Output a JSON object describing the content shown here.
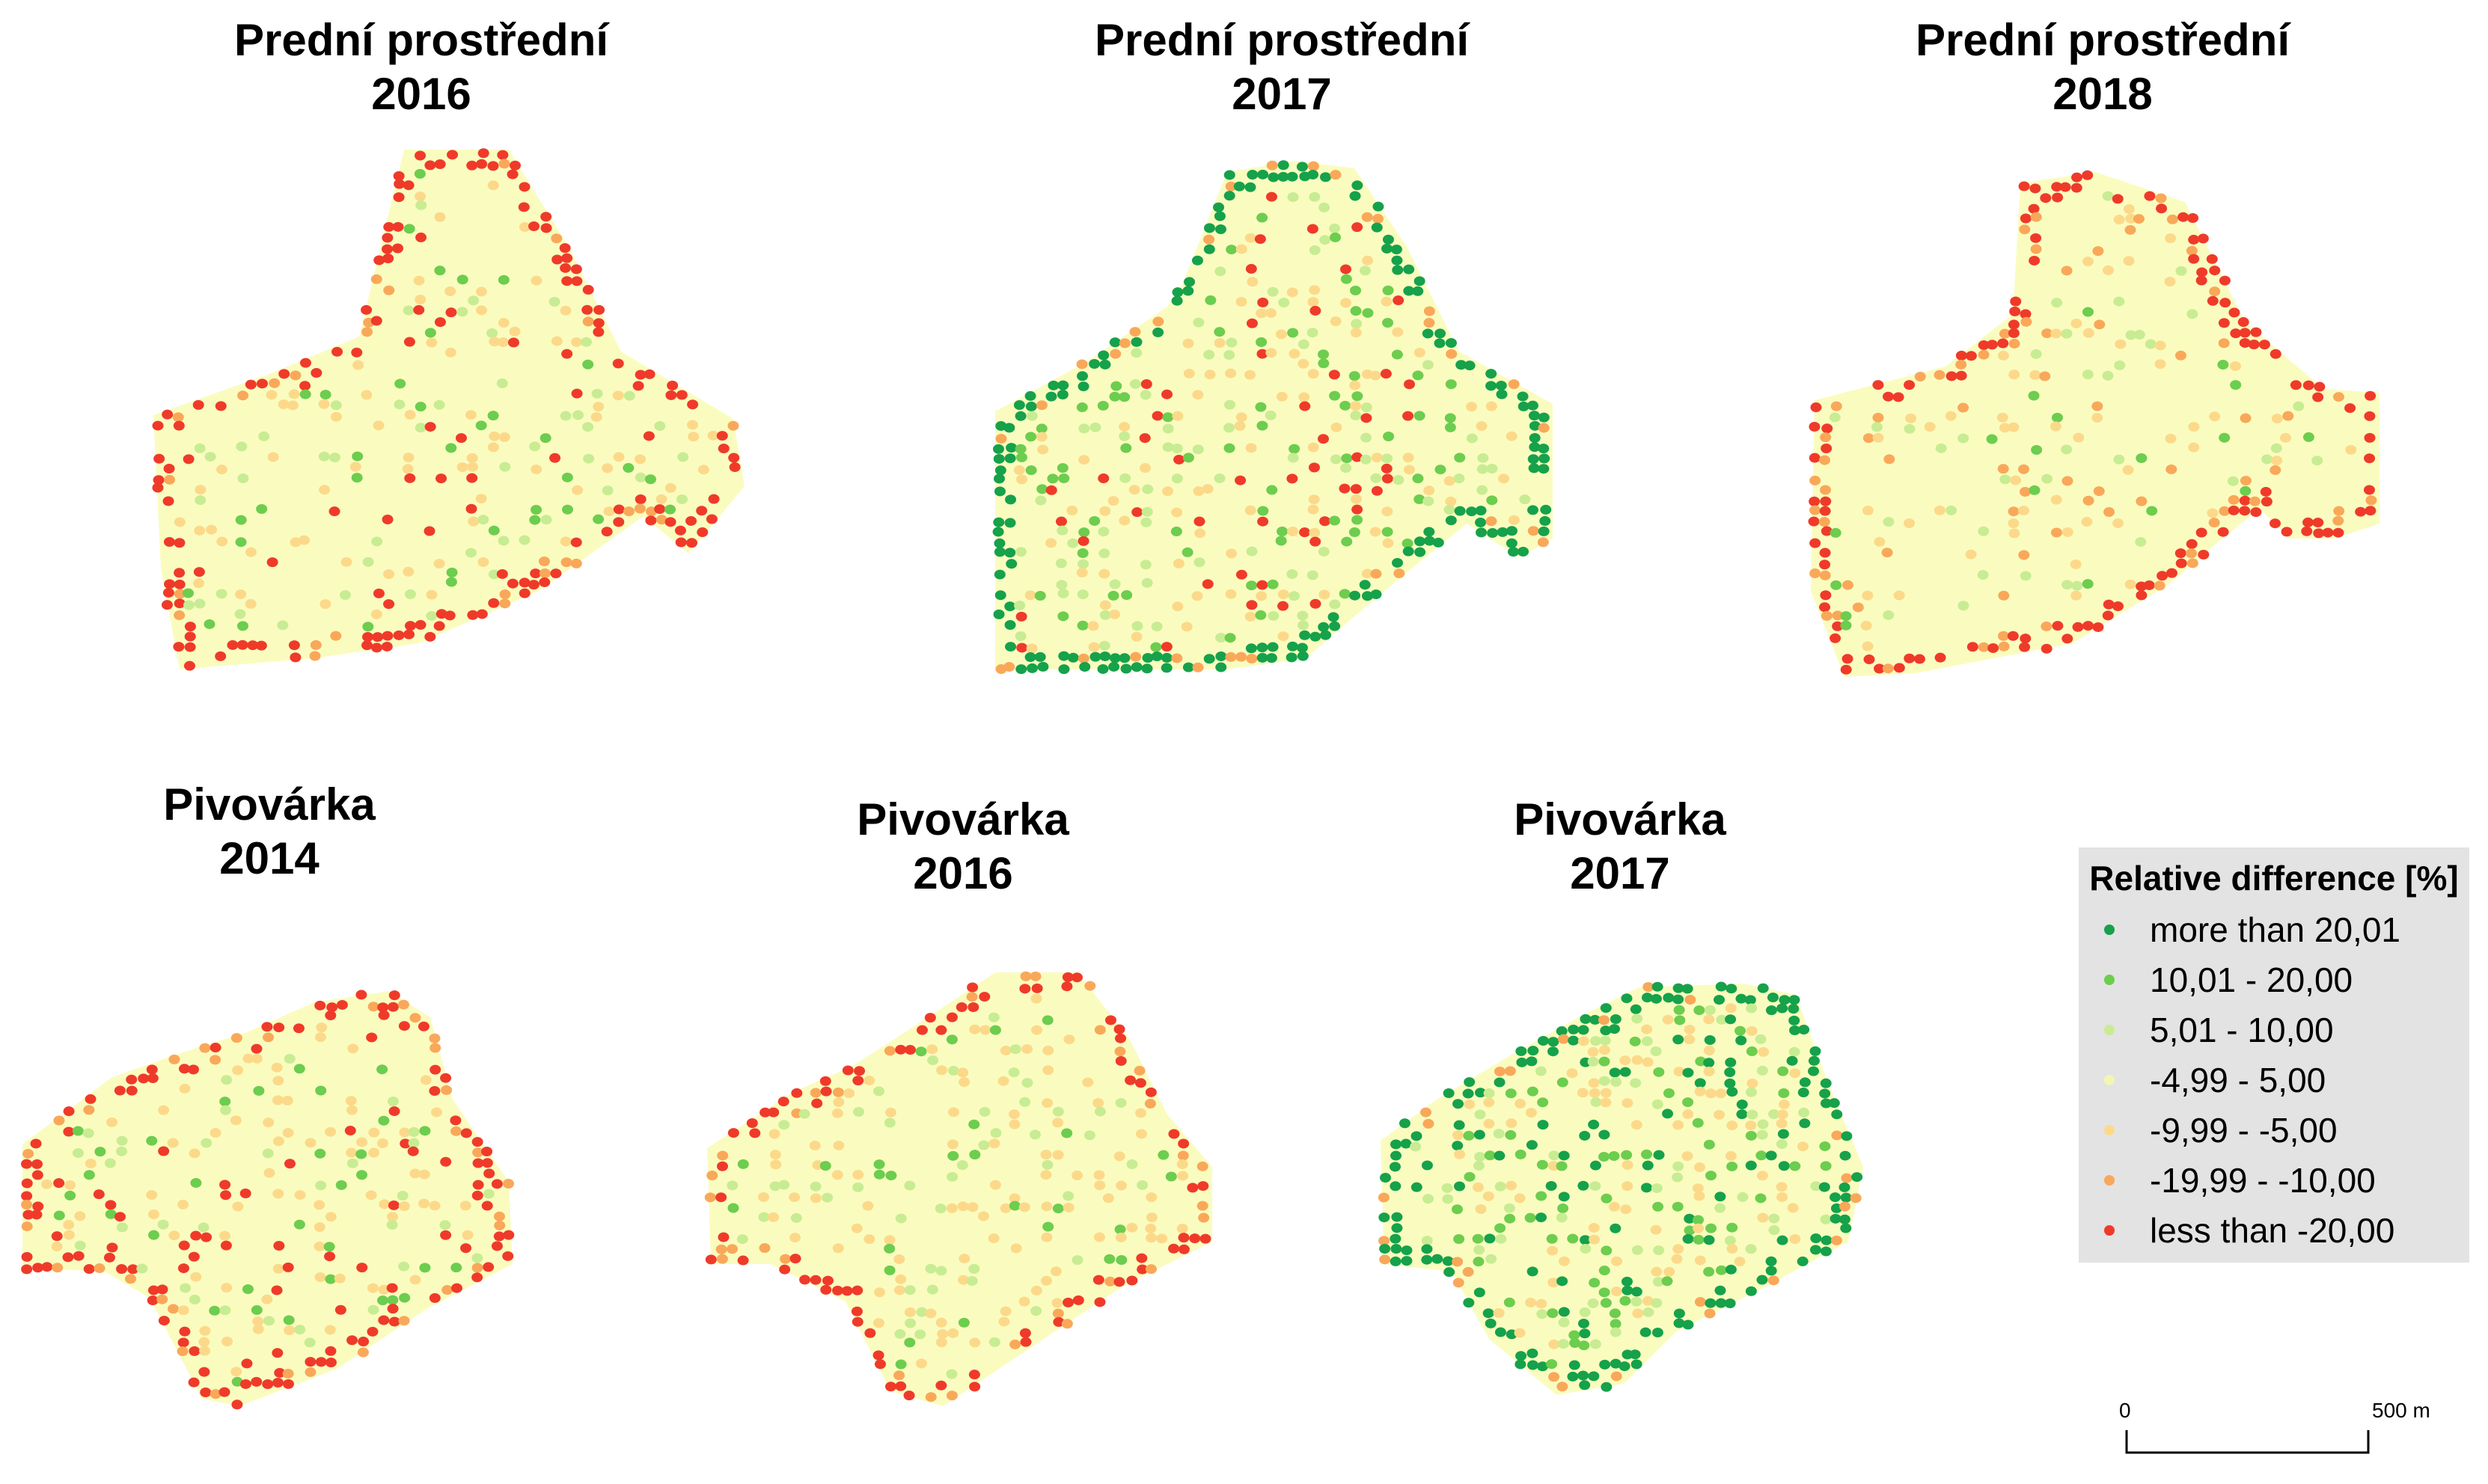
{
  "panels": [
    {
      "title_line1": "Prední prostřední",
      "title_line2": "2016"
    },
    {
      "title_line1": "Prední prostřední",
      "title_line2": "2017"
    },
    {
      "title_line1": "Prední prostřední",
      "title_line2": "2018"
    },
    {
      "title_line1": "Pivovárka",
      "title_line2": "2014"
    },
    {
      "title_line1": "Pivovárka",
      "title_line2": "2016"
    },
    {
      "title_line1": "Pivovárka",
      "title_line2": "2017"
    }
  ],
  "legend": {
    "title": "Relative difference [%]",
    "classes": [
      {
        "label": "more than 20,01",
        "color": "#16a14b"
      },
      {
        "label": "10,01 - 20,00",
        "color": "#6ccd4f"
      },
      {
        "label": "5,01 - 10,00",
        "color": "#c8ec93"
      },
      {
        "label": "-4,99 - 5,00",
        "color": "#fafcbf"
      },
      {
        "label": "-9,99 - -5,00",
        "color": "#fcd98a"
      },
      {
        "label": "-19,99 - -10,00",
        "color": "#f9a85a"
      },
      {
        "label": "less than -20,00",
        "color": "#ef3a2a"
      }
    ]
  },
  "scale_bar": {
    "start_label": "0",
    "end_label": "500 m"
  }
}
